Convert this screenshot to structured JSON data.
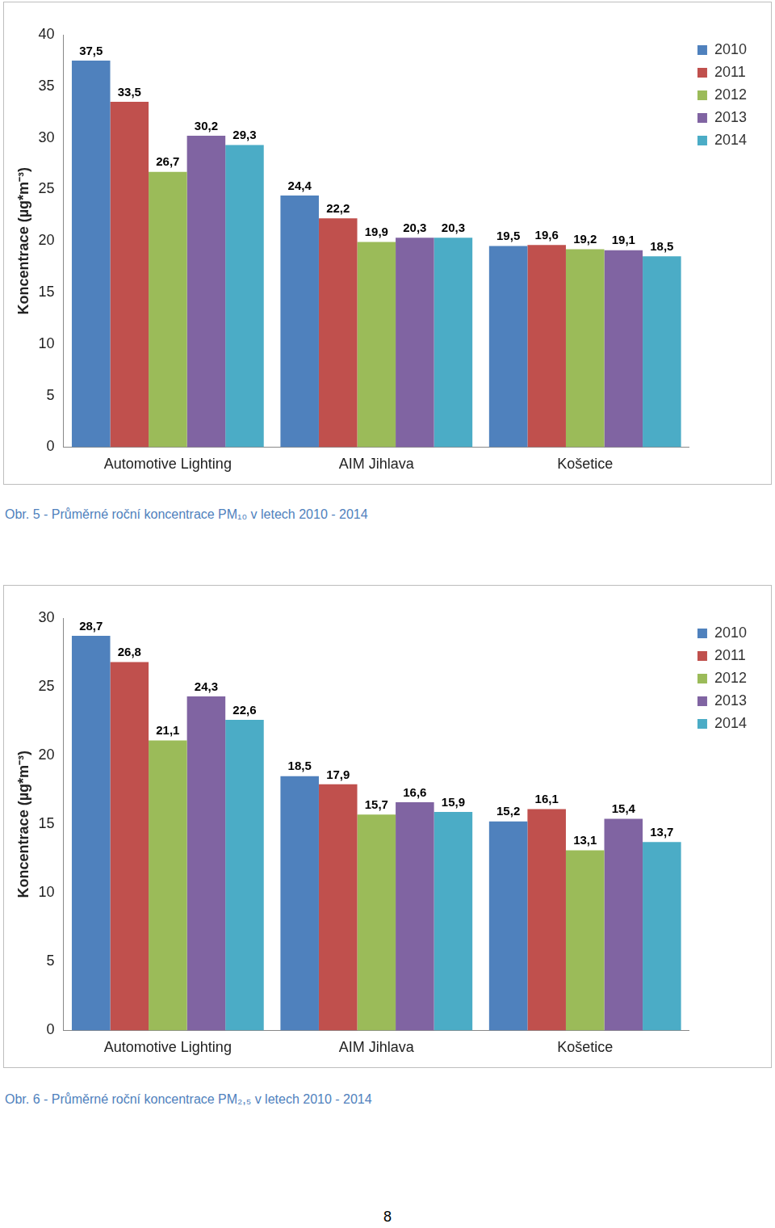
{
  "chart_data": [
    {
      "type": "bar",
      "title": "Obr. 5 - Průměrné roční koncentrace PM₁₀ v letech 2010 - 2014",
      "y_label": "Koncentrace (µg*m⁻³)",
      "categories": [
        "Automotive Lighting",
        "AIM Jihlava",
        "Košetice"
      ],
      "series": [
        {
          "name": "2010",
          "color": "#4f81bd",
          "values": [
            37.5,
            24.4,
            19.5
          ],
          "value_labels": [
            "37,5",
            "24,4",
            "19,5"
          ]
        },
        {
          "name": "2011",
          "color": "#c0504d",
          "values": [
            33.5,
            22.2,
            19.6
          ],
          "value_labels": [
            "33,5",
            "22,2",
            "19,6"
          ]
        },
        {
          "name": "2012",
          "color": "#9bbb59",
          "values": [
            26.7,
            19.9,
            19.2
          ],
          "value_labels": [
            "26,7",
            "19,9",
            "19,2"
          ]
        },
        {
          "name": "2013",
          "color": "#8064a2",
          "values": [
            30.2,
            20.3,
            19.1
          ],
          "value_labels": [
            "30,2",
            "20,3",
            "19,1"
          ]
        },
        {
          "name": "2014",
          "color": "#4bacc6",
          "values": [
            29.3,
            20.3,
            18.5
          ],
          "value_labels": [
            "29,3",
            "20,3",
            "18,5"
          ]
        }
      ],
      "ylim": [
        0,
        40
      ],
      "yticks": [
        0,
        5,
        10,
        15,
        20,
        25,
        30,
        35,
        40
      ],
      "grid": false,
      "legend": "right",
      "data_labels": true
    },
    {
      "type": "bar",
      "title": "Obr. 6 - Průměrné roční koncentrace PM₂,₅ v letech 2010 - 2014",
      "y_label": "Koncentrace (µg*m⁻³)",
      "categories": [
        "Automotive Lighting",
        "AIM Jihlava",
        "Košetice"
      ],
      "series": [
        {
          "name": "2010",
          "color": "#4f81bd",
          "values": [
            28.7,
            18.5,
            15.2
          ],
          "value_labels": [
            "28,7",
            "18,5",
            "15,2"
          ]
        },
        {
          "name": "2011",
          "color": "#c0504d",
          "values": [
            26.8,
            17.9,
            16.1
          ],
          "value_labels": [
            "26,8",
            "17,9",
            "16,1"
          ]
        },
        {
          "name": "2012",
          "color": "#9bbb59",
          "values": [
            21.1,
            15.7,
            13.1
          ],
          "value_labels": [
            "21,1",
            "15,7",
            "13,1"
          ]
        },
        {
          "name": "2013",
          "color": "#8064a2",
          "values": [
            24.3,
            16.6,
            15.4
          ],
          "value_labels": [
            "24,3",
            "16,6",
            "15,4"
          ]
        },
        {
          "name": "2014",
          "color": "#4bacc6",
          "values": [
            22.6,
            15.9,
            13.7
          ],
          "value_labels": [
            "22,6",
            "15,9",
            "13,7"
          ]
        }
      ],
      "ylim": [
        0,
        30
      ],
      "yticks": [
        0,
        5,
        10,
        15,
        20,
        25,
        30
      ],
      "grid": false,
      "legend": "right",
      "data_labels": true
    }
  ],
  "page_number": 8
}
